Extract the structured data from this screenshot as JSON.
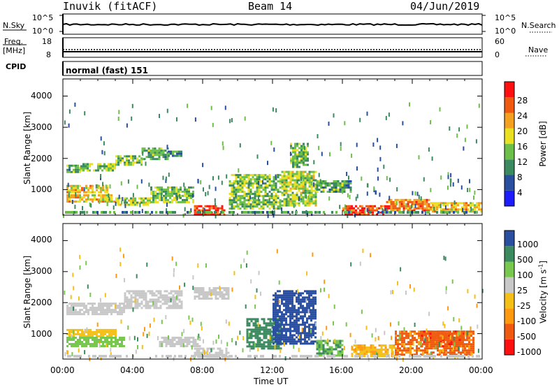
{
  "header": {
    "station": "Inuvik (fitACF)",
    "beam": "Beam 14",
    "date": "04/Jun/2019"
  },
  "top_panels": {
    "nsky_label": "N.Sky",
    "nsearch_label": "N.Search",
    "noise_ticks_left": [
      "10^5",
      "10^0"
    ],
    "noise_ticks_right": [
      "10^5",
      "10^0"
    ],
    "freq_label_1": "Freq.",
    "freq_label_2": "[MHz]",
    "freq_ticks": [
      "18",
      "8"
    ],
    "nave_label": "Nave",
    "nave_ticks": [
      "60",
      "0"
    ],
    "cpid_label": "CPID",
    "cpid_value": "normal (fast) 151"
  },
  "axes": {
    "ylabel": "Slant Range [km]",
    "xlabel": "Time UT",
    "yticks": [
      "1000",
      "2000",
      "3000",
      "4000"
    ],
    "xticks": [
      "00:00",
      "04:00",
      "08:00",
      "12:00",
      "16:00",
      "20:00",
      "00:00"
    ]
  },
  "colors": {
    "power": [
      "#1c1cff",
      "#2a4ea0",
      "#3c8a60",
      "#6cc04a",
      "#e8e020",
      "#f4a020",
      "#f05a10",
      "#ff1010"
    ],
    "velocity": [
      "#ff1010",
      "#f05a10",
      "#ff9a10",
      "#f4c018",
      "#c8c8c8",
      "#78c850",
      "#3c8a60",
      "#2a4ea0"
    ]
  },
  "power_colorbar": {
    "label": "Power [dB]",
    "ticks": [
      "4",
      "8",
      "12",
      "16",
      "20",
      "24",
      "28"
    ]
  },
  "velocity_colorbar": {
    "label_prefix": "Velocity [m s",
    "label_exp": "-1",
    "label_suffix": "]",
    "ticks": [
      "1000",
      "500",
      "100",
      "25",
      "-25",
      "-100",
      "-500",
      "-1000"
    ]
  },
  "chart_data": [
    {
      "type": "heatmap",
      "title": "Power",
      "xlabel": "Time UT",
      "ylabel": "Slant Range [km]",
      "x_range": [
        "00:00",
        "24:00"
      ],
      "ylim": [
        180,
        4550
      ],
      "colorbar": {
        "label": "Power [dB]",
        "range": [
          0,
          30
        ]
      },
      "patches": [
        {
          "t": [
            0.2,
            1.0
          ],
          "r": [
            1550,
            1800
          ],
          "v": 12
        },
        {
          "t": [
            1.0,
            3.0
          ],
          "r": [
            1600,
            1850
          ],
          "v": 14
        },
        {
          "t": [
            3.0,
            4.5
          ],
          "r": [
            1800,
            2100
          ],
          "v": 14
        },
        {
          "t": [
            4.5,
            6.0
          ],
          "r": [
            2000,
            2350
          ],
          "v": 12
        },
        {
          "t": [
            6.0,
            6.8
          ],
          "r": [
            2050,
            2250
          ],
          "v": 10
        },
        {
          "t": [
            0.2,
            2.5
          ],
          "r": [
            900,
            1150
          ],
          "v": 20
        },
        {
          "t": [
            0.2,
            3.0
          ],
          "r": [
            600,
            850
          ],
          "v": 20
        },
        {
          "t": [
            3.0,
            5.0
          ],
          "r": [
            500,
            750
          ],
          "v": 16
        },
        {
          "t": [
            5.0,
            7.5
          ],
          "r": [
            600,
            1100
          ],
          "v": 14
        },
        {
          "t": [
            7.5,
            9.2
          ],
          "r": [
            200,
            500
          ],
          "v": 28
        },
        {
          "t": [
            9.5,
            12.5
          ],
          "r": [
            400,
            1500
          ],
          "v": 14
        },
        {
          "t": [
            12.5,
            14.5
          ],
          "r": [
            500,
            1600
          ],
          "v": 16
        },
        {
          "t": [
            13.0,
            14.0
          ],
          "r": [
            1700,
            2500
          ],
          "v": 14
        },
        {
          "t": [
            14.5,
            16.5
          ],
          "r": [
            900,
            1300
          ],
          "v": 12
        },
        {
          "t": [
            16.0,
            18.5
          ],
          "r": [
            200,
            500
          ],
          "v": 28
        },
        {
          "t": [
            18.5,
            21.0
          ],
          "r": [
            300,
            700
          ],
          "v": 24
        },
        {
          "t": [
            21.0,
            24.0
          ],
          "r": [
            300,
            600
          ],
          "v": 20
        }
      ]
    },
    {
      "type": "heatmap",
      "title": "Velocity",
      "xlabel": "Time UT",
      "ylabel": "Slant Range [km]",
      "x_range": [
        "00:00",
        "24:00"
      ],
      "ylim": [
        180,
        4550
      ],
      "colorbar": {
        "label": "Velocity [m s-1]",
        "levels": [
          1000,
          500,
          100,
          25,
          -25,
          -100,
          -500,
          -1000
        ]
      },
      "patches": [
        {
          "t": [
            0.2,
            3.5
          ],
          "r": [
            1600,
            2000
          ],
          "v": 0
        },
        {
          "t": [
            3.5,
            6.8
          ],
          "r": [
            1800,
            2400
          ],
          "v": 0
        },
        {
          "t": [
            7.5,
            9.5
          ],
          "r": [
            2100,
            2500
          ],
          "v": 0
        },
        {
          "t": [
            0.2,
            3.0
          ],
          "r": [
            900,
            1150
          ],
          "v": -60
        },
        {
          "t": [
            0.2,
            3.5
          ],
          "r": [
            600,
            900
          ],
          "v": 60
        },
        {
          "t": [
            5.5,
            7.8
          ],
          "r": [
            600,
            900
          ],
          "v": 0
        },
        {
          "t": [
            7.5,
            9.5
          ],
          "r": [
            250,
            550
          ],
          "v": 0
        },
        {
          "t": [
            10.5,
            12.5
          ],
          "r": [
            500,
            1500
          ],
          "v": 300
        },
        {
          "t": [
            12.0,
            14.5
          ],
          "r": [
            700,
            2400
          ],
          "v": 800
        },
        {
          "t": [
            14.5,
            16.0
          ],
          "r": [
            300,
            800
          ],
          "v": 100
        },
        {
          "t": [
            16.5,
            19.0
          ],
          "r": [
            250,
            650
          ],
          "v": -80
        },
        {
          "t": [
            19.0,
            23.5
          ],
          "r": [
            300,
            1100
          ],
          "v": -600
        },
        {
          "t": [
            20.5,
            23.0
          ],
          "r": [
            600,
            1100
          ],
          "v": -800
        }
      ]
    }
  ]
}
